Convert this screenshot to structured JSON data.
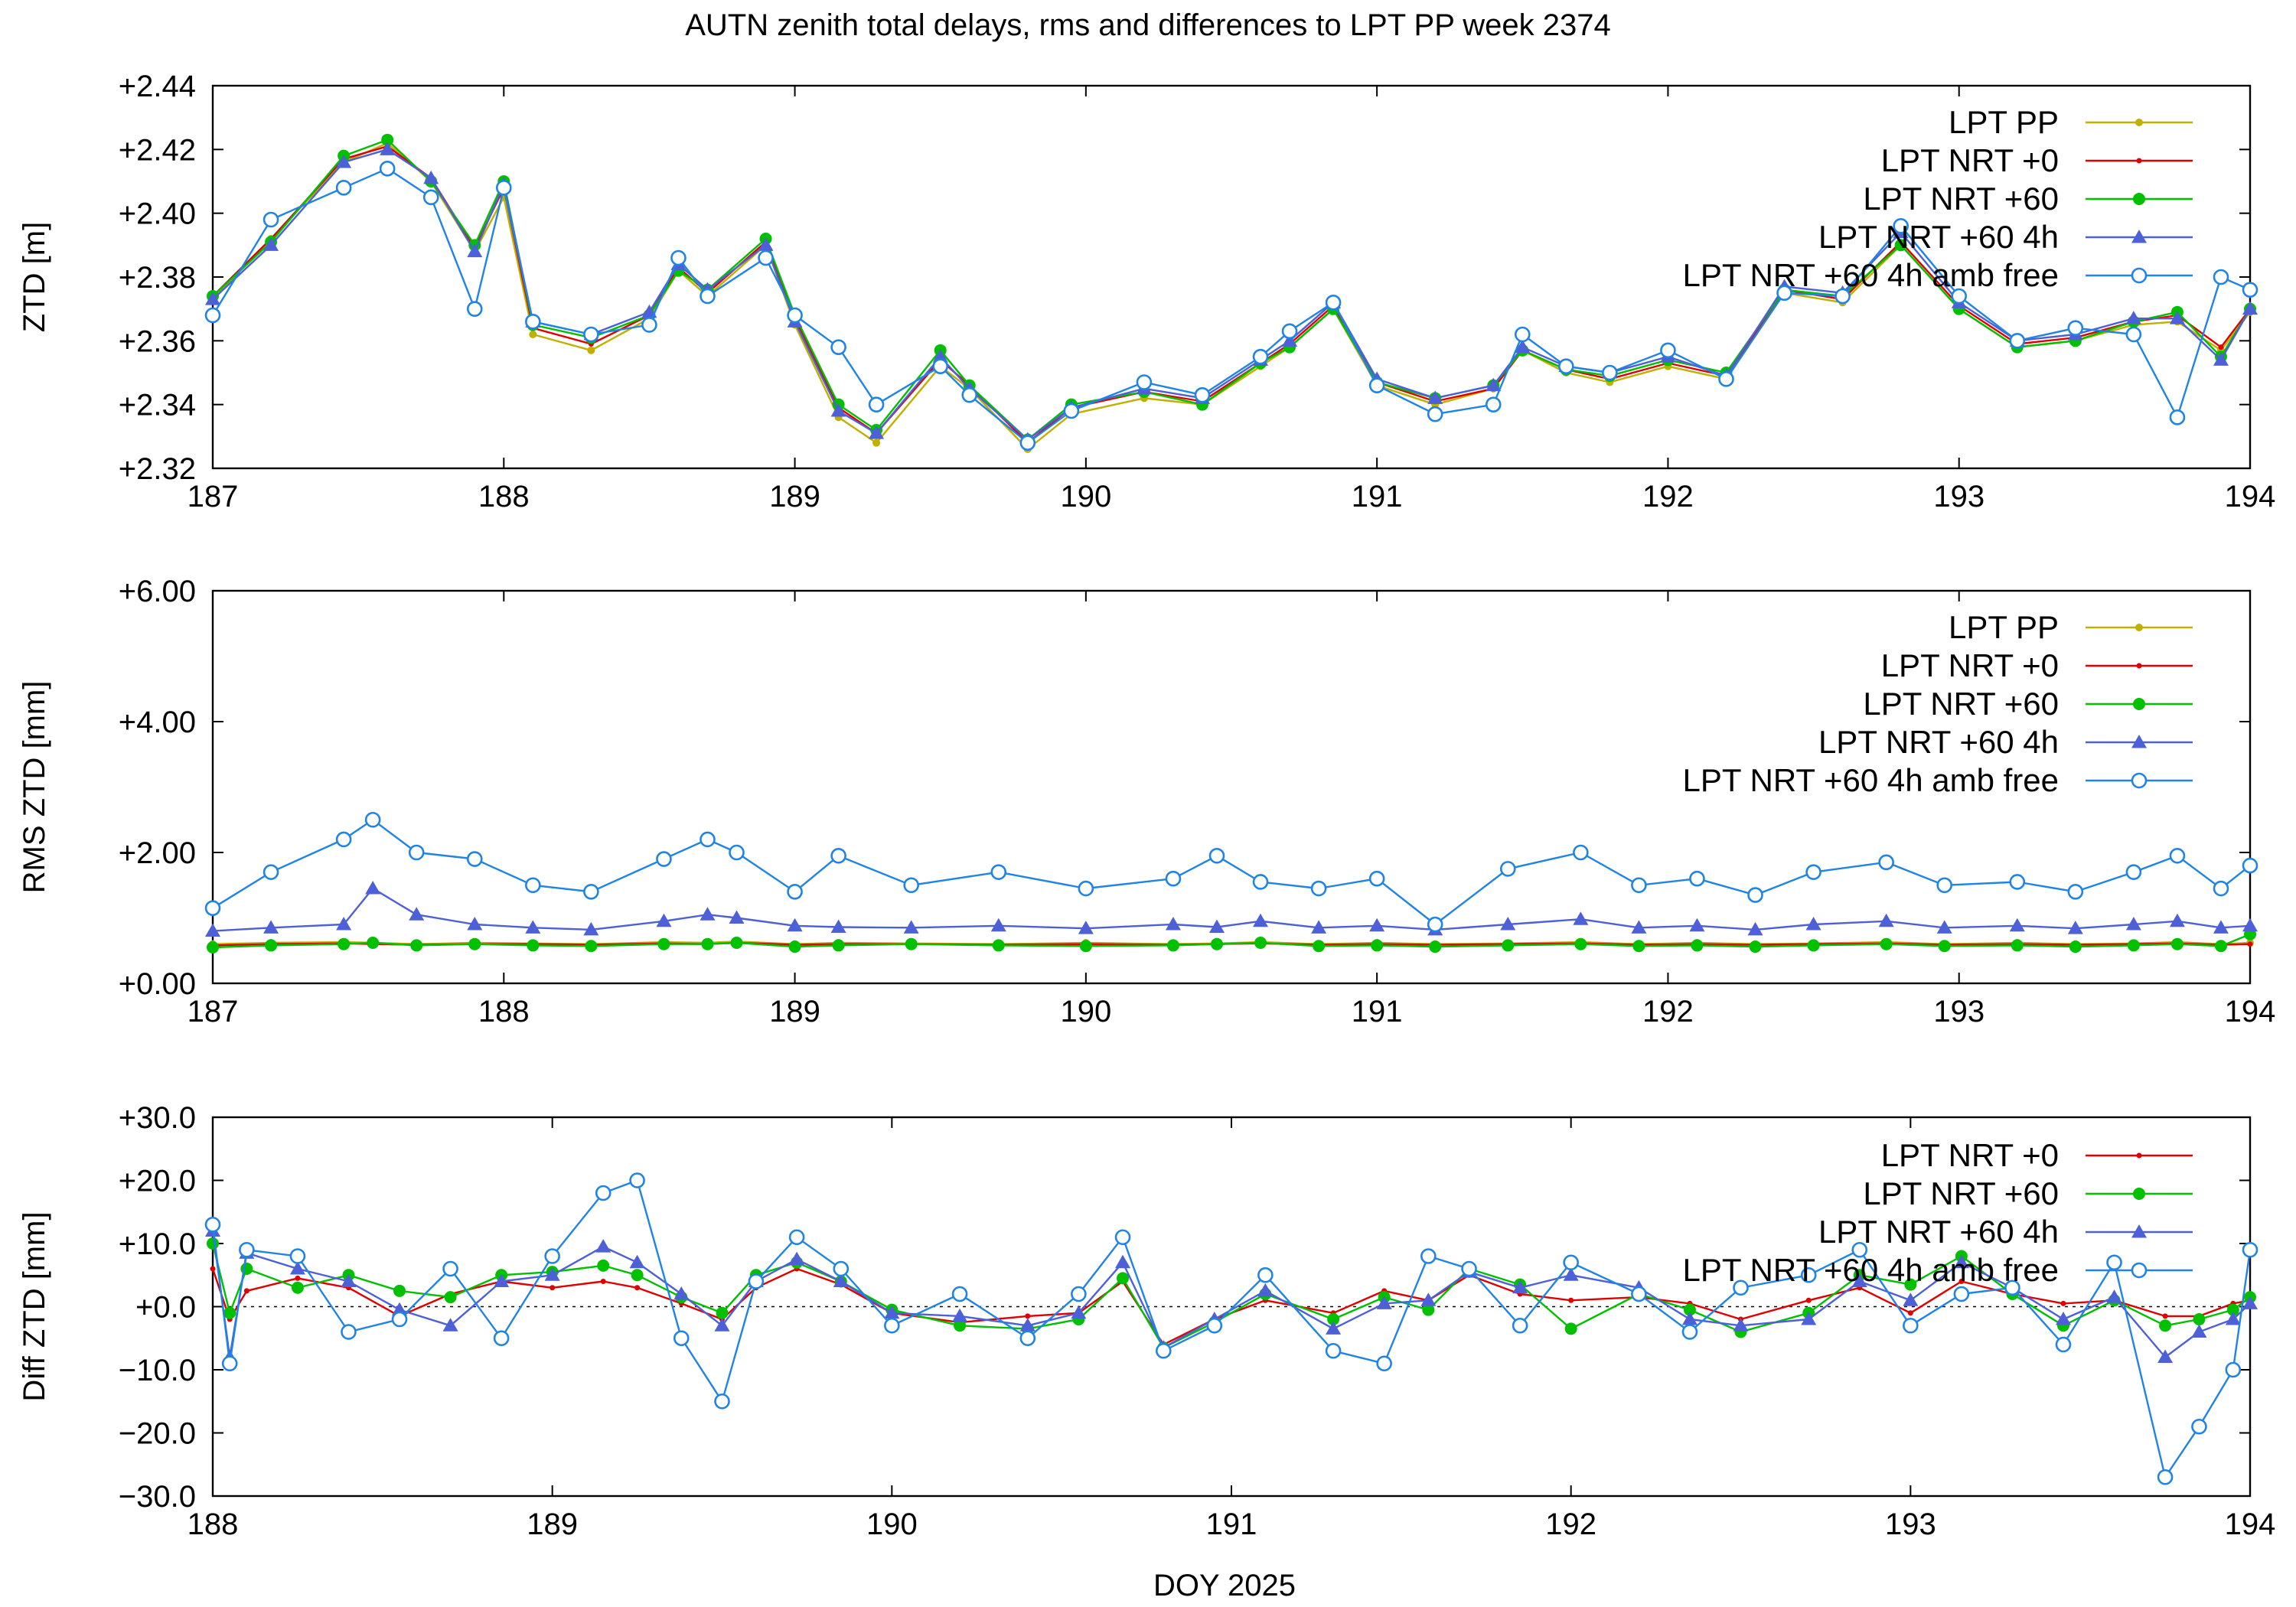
{
  "figure_title": "AUTN zenith total delays, rms and differences to LPT PP week 2374",
  "xlabel": "DOY 2025",
  "colors": {
    "LPT PP": "#c0b000",
    "LPT NRT +0": "#e00000",
    "LPT NRT +60": "#00c000",
    "LPT NRT +60 4h": "#4d60d8",
    "LPT NRT +60 4h amb free": "#1f84e6"
  },
  "chart_data": [
    {
      "type": "line",
      "title": "AUTN zenith total delays, rms and differences to LPT PP week 2374",
      "ylabel": "ZTD [m]",
      "xlabel": "",
      "xlim": [
        187,
        194
      ],
      "ylim": [
        2.32,
        2.44
      ],
      "x_ticks": [
        "187",
        "188",
        "189",
        "190",
        "191",
        "192",
        "193",
        "194"
      ],
      "y_ticks": [
        "+2.32",
        "+2.34",
        "+2.36",
        "+2.38",
        "+2.40",
        "+2.42",
        "+2.44"
      ],
      "legend_position": "top-right",
      "grid": false,
      "x": [
        187.0,
        187.2,
        187.45,
        187.6,
        187.75,
        187.9,
        188.0,
        188.1,
        188.3,
        188.5,
        188.6,
        188.7,
        188.9,
        189.0,
        189.15,
        189.28,
        189.5,
        189.6,
        189.8,
        189.95,
        190.2,
        190.4,
        190.6,
        190.7,
        190.85,
        191.0,
        191.2,
        191.4,
        191.5,
        191.65,
        191.8,
        192.0,
        192.2,
        192.4,
        192.6,
        192.8,
        193.0,
        193.2,
        193.4,
        193.6,
        193.75,
        193.9,
        194.0
      ],
      "series": [
        {
          "name": "LPT PP",
          "marker": "dot",
          "values": [
            2.373,
            2.392,
            2.416,
            2.422,
            2.41,
            2.388,
            2.405,
            2.362,
            2.357,
            2.367,
            2.382,
            2.374,
            2.39,
            2.365,
            2.336,
            2.328,
            2.352,
            2.345,
            2.326,
            2.337,
            2.342,
            2.34,
            2.352,
            2.358,
            2.37,
            2.346,
            2.34,
            2.345,
            2.357,
            2.35,
            2.347,
            2.352,
            2.348,
            2.375,
            2.372,
            2.39,
            2.37,
            2.358,
            2.36,
            2.365,
            2.366,
            2.357,
            2.369
          ]
        },
        {
          "name": "LPT NRT +0",
          "marker": "small-dot",
          "values": [
            2.374,
            2.392,
            2.417,
            2.421,
            2.411,
            2.389,
            2.408,
            2.364,
            2.359,
            2.368,
            2.383,
            2.375,
            2.391,
            2.367,
            2.339,
            2.331,
            2.354,
            2.346,
            2.328,
            2.339,
            2.344,
            2.341,
            2.353,
            2.359,
            2.371,
            2.347,
            2.341,
            2.345,
            2.357,
            2.351,
            2.348,
            2.353,
            2.349,
            2.376,
            2.373,
            2.391,
            2.371,
            2.359,
            2.361,
            2.366,
            2.368,
            2.358,
            2.37
          ]
        },
        {
          "name": "LPT NRT +60",
          "marker": "filled-circle",
          "values": [
            2.374,
            2.391,
            2.418,
            2.423,
            2.41,
            2.39,
            2.41,
            2.365,
            2.361,
            2.368,
            2.382,
            2.376,
            2.392,
            2.368,
            2.34,
            2.332,
            2.357,
            2.346,
            2.329,
            2.34,
            2.344,
            2.34,
            2.353,
            2.358,
            2.37,
            2.347,
            2.342,
            2.346,
            2.357,
            2.351,
            2.349,
            2.354,
            2.35,
            2.376,
            2.374,
            2.39,
            2.37,
            2.358,
            2.36,
            2.366,
            2.369,
            2.355,
            2.37
          ]
        },
        {
          "name": "LPT NRT +60 4h",
          "marker": "triangle",
          "values": [
            2.373,
            2.39,
            2.416,
            2.42,
            2.411,
            2.388,
            2.409,
            2.366,
            2.362,
            2.369,
            2.384,
            2.376,
            2.39,
            2.366,
            2.338,
            2.331,
            2.355,
            2.345,
            2.329,
            2.339,
            2.345,
            2.342,
            2.354,
            2.36,
            2.372,
            2.348,
            2.342,
            2.346,
            2.358,
            2.352,
            2.35,
            2.355,
            2.349,
            2.377,
            2.375,
            2.394,
            2.372,
            2.36,
            2.362,
            2.367,
            2.367,
            2.354,
            2.37
          ]
        },
        {
          "name": "LPT NRT +60 4h amb free",
          "marker": "open-circle",
          "values": [
            2.368,
            2.398,
            2.408,
            2.414,
            2.405,
            2.37,
            2.408,
            2.366,
            2.362,
            2.365,
            2.386,
            2.374,
            2.386,
            2.368,
            2.358,
            2.34,
            2.352,
            2.343,
            2.328,
            2.338,
            2.347,
            2.343,
            2.355,
            2.363,
            2.372,
            2.346,
            2.337,
            2.34,
            2.362,
            2.352,
            2.35,
            2.357,
            2.348,
            2.375,
            2.374,
            2.396,
            2.374,
            2.36,
            2.364,
            2.362,
            2.336,
            2.38,
            2.376
          ]
        }
      ]
    },
    {
      "type": "line",
      "title": "",
      "ylabel": "RMS ZTD [mm]",
      "xlabel": "",
      "xlim": [
        187,
        194
      ],
      "ylim": [
        0,
        6
      ],
      "x_ticks": [
        "187",
        "188",
        "189",
        "190",
        "191",
        "192",
        "193",
        "194"
      ],
      "y_ticks": [
        "+0.00",
        "+2.00",
        "+4.00",
        "+6.00"
      ],
      "legend_position": "top-right",
      "grid": false,
      "x": [
        187.0,
        187.2,
        187.45,
        187.55,
        187.7,
        187.9,
        188.1,
        188.3,
        188.55,
        188.7,
        188.8,
        189.0,
        189.15,
        189.4,
        189.7,
        190.0,
        190.3,
        190.45,
        190.6,
        190.8,
        191.0,
        191.2,
        191.45,
        191.7,
        191.9,
        192.1,
        192.3,
        192.5,
        192.75,
        192.95,
        193.2,
        193.4,
        193.6,
        193.75,
        193.9,
        194.0
      ],
      "series": [
        {
          "name": "LPT PP",
          "marker": "dot",
          "values": [
            0.6,
            0.62,
            0.63,
            0.62,
            0.6,
            0.62,
            0.61,
            0.6,
            0.63,
            0.62,
            0.64,
            0.6,
            0.62,
            0.61,
            0.6,
            0.62,
            0.6,
            0.61,
            0.63,
            0.6,
            0.62,
            0.6,
            0.61,
            0.63,
            0.6,
            0.62,
            0.6,
            0.61,
            0.63,
            0.6,
            0.62,
            0.6,
            0.61,
            0.63,
            0.6,
            0.62
          ]
        },
        {
          "name": "LPT NRT +0",
          "marker": "small-dot",
          "values": [
            0.58,
            0.6,
            0.61,
            0.6,
            0.59,
            0.6,
            0.6,
            0.59,
            0.61,
            0.6,
            0.62,
            0.59,
            0.6,
            0.6,
            0.59,
            0.6,
            0.59,
            0.6,
            0.61,
            0.59,
            0.6,
            0.59,
            0.6,
            0.61,
            0.59,
            0.6,
            0.59,
            0.6,
            0.61,
            0.59,
            0.6,
            0.59,
            0.6,
            0.61,
            0.59,
            0.6
          ]
        },
        {
          "name": "LPT NRT +60",
          "marker": "filled-circle",
          "values": [
            0.55,
            0.58,
            0.6,
            0.62,
            0.58,
            0.6,
            0.58,
            0.57,
            0.6,
            0.6,
            0.62,
            0.56,
            0.58,
            0.6,
            0.58,
            0.57,
            0.58,
            0.6,
            0.62,
            0.57,
            0.58,
            0.56,
            0.58,
            0.6,
            0.57,
            0.58,
            0.56,
            0.58,
            0.6,
            0.57,
            0.58,
            0.56,
            0.58,
            0.6,
            0.57,
            0.75
          ]
        },
        {
          "name": "LPT NRT +60 4h",
          "marker": "triangle",
          "values": [
            0.8,
            0.85,
            0.9,
            1.45,
            1.05,
            0.9,
            0.85,
            0.82,
            0.95,
            1.05,
            1.0,
            0.88,
            0.86,
            0.85,
            0.88,
            0.84,
            0.9,
            0.86,
            0.95,
            0.85,
            0.88,
            0.82,
            0.9,
            0.98,
            0.85,
            0.88,
            0.82,
            0.9,
            0.95,
            0.85,
            0.88,
            0.84,
            0.9,
            0.95,
            0.85,
            0.88
          ]
        },
        {
          "name": "LPT NRT +60 4h amb free",
          "marker": "open-circle",
          "values": [
            1.15,
            1.7,
            2.2,
            2.5,
            2.0,
            1.9,
            1.5,
            1.4,
            1.9,
            2.2,
            2.0,
            1.4,
            1.95,
            1.5,
            1.7,
            1.45,
            1.6,
            1.95,
            1.55,
            1.45,
            1.6,
            0.9,
            1.75,
            2.0,
            1.5,
            1.6,
            1.35,
            1.7,
            1.85,
            1.5,
            1.55,
            1.4,
            1.7,
            1.95,
            1.45,
            1.8
          ]
        }
      ]
    },
    {
      "type": "line",
      "title": "",
      "ylabel": "Diff ZTD [mm]",
      "xlabel": "DOY 2025",
      "xlim": [
        188,
        194
      ],
      "ylim": [
        -30,
        30
      ],
      "x_ticks": [
        "188",
        "189",
        "190",
        "191",
        "192",
        "193",
        "194"
      ],
      "y_ticks": [
        "−30.0",
        "−20.0",
        "−10.0",
        "+0.0",
        "+10.0",
        "+20.0",
        "+30.0"
      ],
      "legend_position": "top-right",
      "grid": false,
      "zero_line": true,
      "x": [
        188.0,
        188.05,
        188.1,
        188.25,
        188.4,
        188.55,
        188.7,
        188.85,
        189.0,
        189.15,
        189.25,
        189.38,
        189.5,
        189.6,
        189.72,
        189.85,
        190.0,
        190.2,
        190.4,
        190.55,
        190.68,
        190.8,
        190.95,
        191.1,
        191.3,
        191.45,
        191.58,
        191.7,
        191.85,
        192.0,
        192.2,
        192.35,
        192.5,
        192.7,
        192.85,
        193.0,
        193.15,
        193.3,
        193.45,
        193.6,
        193.75,
        193.85,
        193.95,
        194.0
      ],
      "series": [
        {
          "name": "LPT NRT +0",
          "marker": "small-dot",
          "values": [
            6.0,
            -2.0,
            2.5,
            4.5,
            3.0,
            -1.5,
            2.0,
            4.0,
            3.0,
            4.0,
            3.0,
            0.5,
            -2.0,
            3.0,
            6.0,
            3.5,
            -1.0,
            -2.5,
            -1.5,
            -1.0,
            4.0,
            -6.0,
            -2.0,
            1.0,
            -1.0,
            2.5,
            1.0,
            5.0,
            2.0,
            1.0,
            1.5,
            0.5,
            -2.0,
            1.0,
            3.0,
            -1.0,
            4.0,
            2.0,
            0.5,
            1.0,
            -1.5,
            -1.5,
            0.5,
            1.0
          ]
        },
        {
          "name": "LPT NRT +60",
          "marker": "filled-circle",
          "values": [
            10.0,
            -1.0,
            6.0,
            3.0,
            5.0,
            2.5,
            1.5,
            5.0,
            5.5,
            6.5,
            5.0,
            1.5,
            -1.0,
            5.0,
            7.0,
            4.0,
            -0.5,
            -3.0,
            -3.5,
            -2.0,
            4.5,
            -6.5,
            -2.5,
            2.0,
            -2.0,
            1.5,
            -0.5,
            6.0,
            3.5,
            -3.5,
            2.0,
            -0.5,
            -4.0,
            -1.0,
            5.0,
            3.5,
            8.0,
            2.0,
            -3.0,
            1.0,
            -3.0,
            -2.0,
            -0.5,
            1.5
          ]
        },
        {
          "name": "LPT NRT +60 4h",
          "marker": "triangle",
          "values": [
            12.0,
            -8.0,
            8.5,
            6.0,
            4.0,
            -0.5,
            -3.0,
            4.0,
            5.0,
            9.5,
            7.0,
            2.0,
            -3.0,
            4.0,
            7.5,
            4.0,
            -1.0,
            -1.5,
            -3.0,
            -1.0,
            7.0,
            -6.5,
            -2.0,
            2.5,
            -3.5,
            0.5,
            1.0,
            5.5,
            3.0,
            5.0,
            3.0,
            -2.0,
            -3.0,
            -2.0,
            4.0,
            1.0,
            7.0,
            3.0,
            -2.0,
            1.5,
            -8.0,
            -4.0,
            -2.0,
            0.5
          ]
        },
        {
          "name": "LPT NRT +60 4h amb free",
          "marker": "open-circle",
          "values": [
            13.0,
            -9.0,
            9.0,
            8.0,
            -4.0,
            -2.0,
            6.0,
            -5.0,
            8.0,
            18.0,
            20.0,
            -5.0,
            -15.0,
            4.0,
            11.0,
            6.0,
            -3.0,
            2.0,
            -5.0,
            2.0,
            11.0,
            -7.0,
            -3.0,
            5.0,
            -7.0,
            -9.0,
            8.0,
            6.0,
            -3.0,
            7.0,
            2.0,
            -4.0,
            3.0,
            5.0,
            9.0,
            -3.0,
            2.0,
            3.0,
            -6.0,
            7.0,
            -27.0,
            -19.0,
            -10.0,
            9.0
          ]
        }
      ]
    }
  ]
}
